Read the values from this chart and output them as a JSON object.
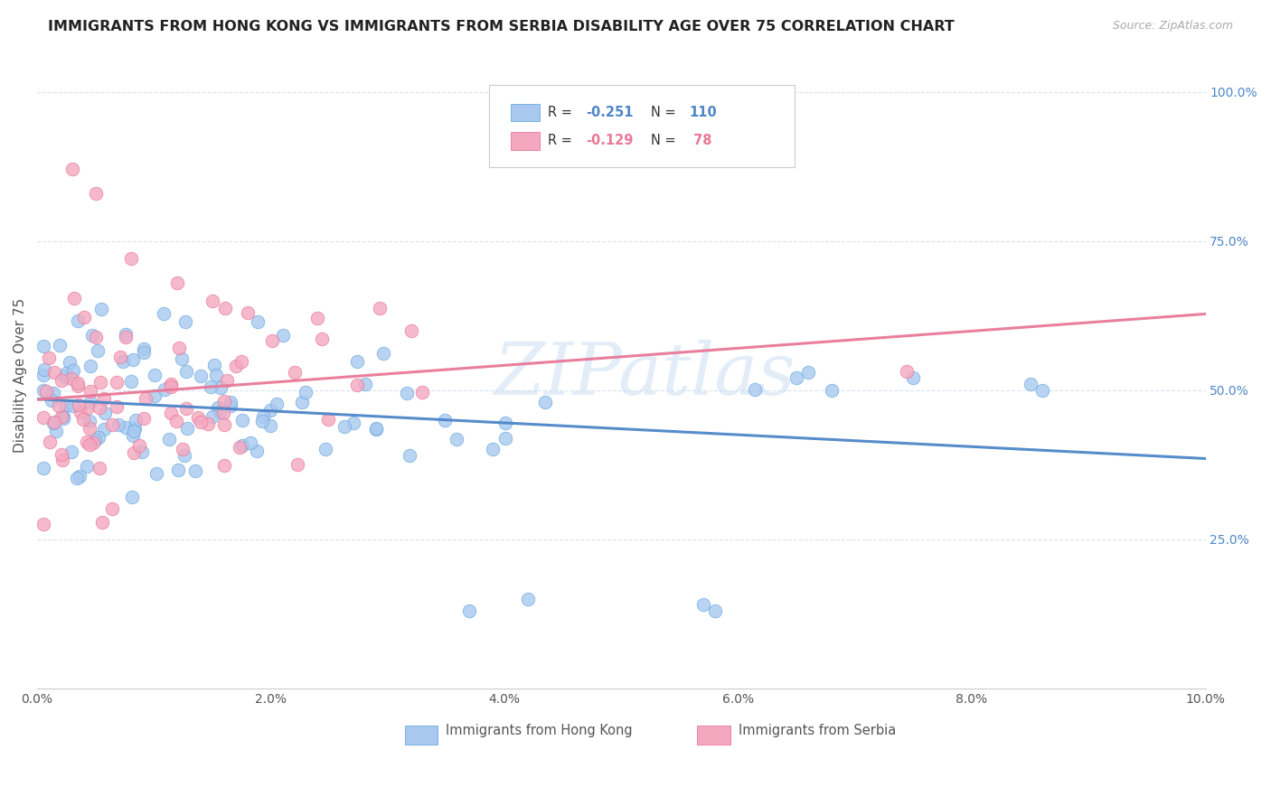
{
  "title": "IMMIGRANTS FROM HONG KONG VS IMMIGRANTS FROM SERBIA DISABILITY AGE OVER 75 CORRELATION CHART",
  "source": "Source: ZipAtlas.com",
  "ylabel": "Disability Age Over 75",
  "watermark": "ZIPatlas",
  "hk_color": "#a8c8f0",
  "sr_color": "#f4a8c0",
  "hk_edge_color": "#6aaade",
  "sr_edge_color": "#e87898",
  "hk_line_color": "#4e86c8",
  "sr_line_color": "#e87898",
  "right_tick_color": "#4e86c8",
  "grid_color": "#d8e4f0",
  "xlim": [
    0.0,
    0.1
  ],
  "ylim": [
    0.0,
    1.05
  ],
  "xticks": [
    0.0,
    0.02,
    0.04,
    0.06,
    0.08,
    0.1
  ],
  "xticklabels": [
    "0.0%",
    "2.0%",
    "4.0%",
    "6.0%",
    "8.0%",
    "10.0%"
  ],
  "right_yticks": [
    0.25,
    0.5,
    0.75,
    1.0
  ],
  "right_yticklabels": [
    "25.0%",
    "50.0%",
    "75.0%",
    "100.0%"
  ],
  "legend_r_hk": "-0.251",
  "legend_n_hk": "110",
  "legend_r_sr": "-0.129",
  "legend_n_sr": " 78",
  "bottom_legend_hk": "Immigrants from Hong Kong",
  "bottom_legend_sr": "Immigrants from Serbia"
}
